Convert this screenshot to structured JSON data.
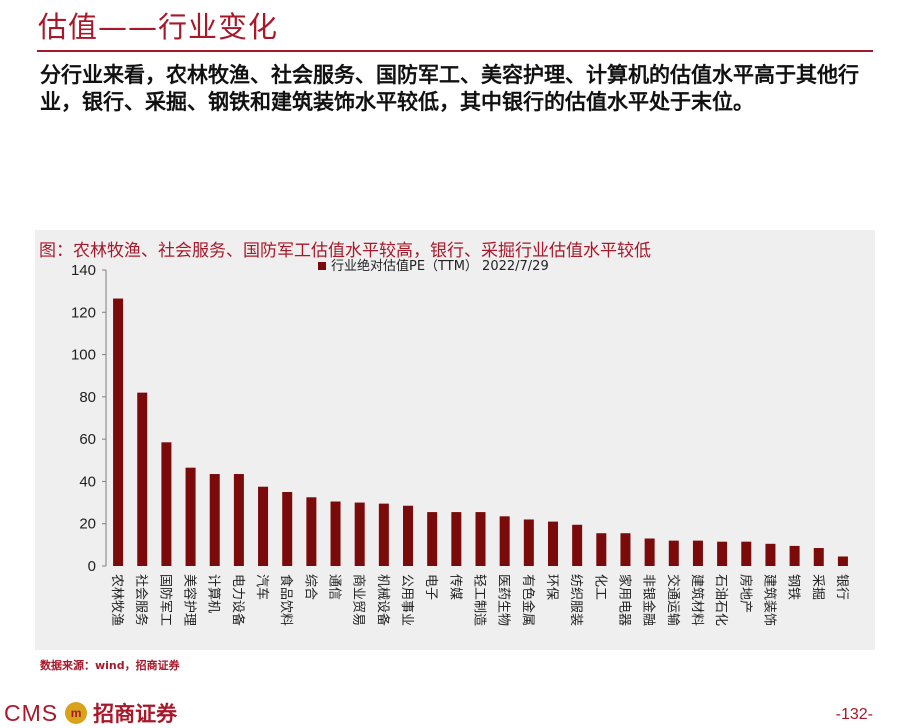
{
  "page": {
    "title": "估值——行业变化",
    "intro": "分行业来看，农林牧渔、社会服务、国防军工、美容护理、计算机的估值水平高于其他行业，银行、采掘、钢铁和建筑装饰水平较低，其中银行的估值水平处于末位。",
    "source": "数据来源：wind，招商证券",
    "page_number": "-132-",
    "logo_text": "CMS",
    "logo_mark": "m",
    "logo_cn": "招商证券"
  },
  "colors": {
    "accent": "#a8182a",
    "bar": "#7b0a0a",
    "panel": "#efefef"
  },
  "chart_data": {
    "type": "bar",
    "title": "图：农林牧渔、社会服务、国防军工估值水平较高，银行、采掘行业估值水平较低",
    "legend_position": "top-center",
    "ylim": [
      0,
      140
    ],
    "yticks": [
      "0",
      "20",
      "40",
      "60",
      "80",
      "100",
      "120",
      "140"
    ],
    "grid": false,
    "categories": [
      "农林牧渔",
      "社会服务",
      "国防军工",
      "美容护理",
      "计算机",
      "电力设备",
      "汽车",
      "食品饮料",
      "综合",
      "通信",
      "商业贸易",
      "机械设备",
      "公用事业",
      "电子",
      "传媒",
      "轻工制造",
      "医药生物",
      "有色金属",
      "环保",
      "纺织服装",
      "化工",
      "家用电器",
      "非银金融",
      "交通运输",
      "建筑材料",
      "石油石化",
      "房地产",
      "建筑装饰",
      "钢铁",
      "采掘",
      "银行"
    ],
    "series": [
      {
        "name": "行业绝对估值PE（TTM） 2022/7/29",
        "values": [
          126.5,
          82,
          58.5,
          46.5,
          43.5,
          43.5,
          37.5,
          35,
          32.5,
          30.5,
          30,
          29.5,
          28.5,
          25.5,
          25.5,
          25.5,
          23.5,
          22,
          21,
          19.5,
          15.5,
          15.5,
          13,
          12,
          12,
          11.5,
          11.5,
          10.5,
          9.5,
          8.5,
          4.5
        ]
      }
    ]
  }
}
